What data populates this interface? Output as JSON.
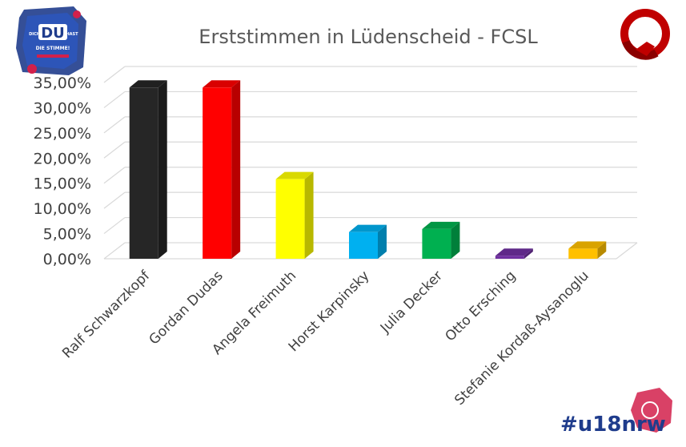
{
  "logos": {
    "left_badge_main": "DU",
    "left_badge_small_left": "DICH",
    "left_badge_small_right": "HAST",
    "left_badge_sub": "DIE STIMME!",
    "hashtag": "#u18nrw"
  },
  "chart_data": {
    "type": "bar",
    "title": "Erststimmen in Lüdenscheid - FCSL",
    "xlabel": "",
    "ylabel": "",
    "ylim": [
      0,
      35
    ],
    "yticks": [
      "0,00%",
      "5,00%",
      "10,00%",
      "15,00%",
      "20,00%",
      "25,00%",
      "30,00%",
      "35,00%"
    ],
    "grid": true,
    "legend": "none",
    "categories": [
      "Ralf Schwarzkopf",
      "Gordan Dudas",
      "Angela Freimuth",
      "Horst Karpinsky",
      "Julia Decker",
      "Otto Ersching",
      "Stefanie Kordaß-Aysanoglu"
    ],
    "values": [
      34.0,
      34.0,
      15.8,
      5.3,
      5.9,
      0.6,
      2.0
    ],
    "colors": [
      "#262626",
      "#ff0000",
      "#ffff00",
      "#00b0f0",
      "#00b050",
      "#7030a0",
      "#ffc000"
    ]
  }
}
